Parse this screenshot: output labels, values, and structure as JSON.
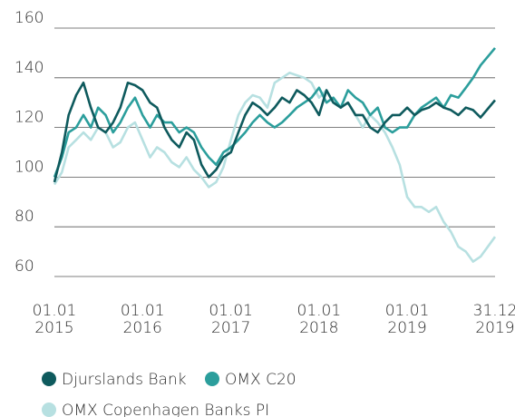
{
  "chart_data": {
    "type": "line",
    "x": [
      "2015-01-01",
      "2015-02-01",
      "2015-03-01",
      "2015-04-01",
      "2015-05-01",
      "2015-06-01",
      "2015-07-01",
      "2015-08-01",
      "2015-09-01",
      "2015-10-01",
      "2015-11-01",
      "2015-12-01",
      "2016-01-01",
      "2016-02-01",
      "2016-03-01",
      "2016-04-01",
      "2016-05-01",
      "2016-06-01",
      "2016-07-01",
      "2016-08-01",
      "2016-09-01",
      "2016-10-01",
      "2016-11-01",
      "2016-12-01",
      "2017-01-01",
      "2017-02-01",
      "2017-03-01",
      "2017-04-01",
      "2017-05-01",
      "2017-06-01",
      "2017-07-01",
      "2017-08-01",
      "2017-09-01",
      "2017-10-01",
      "2017-11-01",
      "2017-12-01",
      "2018-01-01",
      "2018-02-01",
      "2018-03-01",
      "2018-04-01",
      "2018-05-01",
      "2018-06-01",
      "2018-07-01",
      "2018-08-01",
      "2018-09-01",
      "2018-10-01",
      "2018-11-01",
      "2018-12-01",
      "2019-01-01",
      "2019-02-01",
      "2019-03-01",
      "2019-04-01",
      "2019-05-01",
      "2019-06-01",
      "2019-07-01",
      "2019-08-01",
      "2019-09-01",
      "2019-10-01",
      "2019-11-01",
      "2019-12-31"
    ],
    "series": [
      {
        "name": "OMX Copenhagen Banks PI",
        "color": "#b7e0e1",
        "values": [
          97,
          102,
          112,
          115,
          118,
          115,
          120,
          118,
          112,
          114,
          120,
          122,
          115,
          108,
          112,
          110,
          106,
          104,
          108,
          103,
          100,
          96,
          98,
          104,
          115,
          125,
          130,
          133,
          132,
          128,
          138,
          140,
          142,
          141,
          140,
          138,
          132,
          135,
          130,
          128,
          130,
          125,
          120,
          125,
          122,
          118,
          112,
          105,
          92,
          88,
          88,
          86,
          88,
          82,
          78,
          72,
          70,
          66,
          68,
          76
        ]
      },
      {
        "name": "OMX C20",
        "color": "#2b9e9c",
        "values": [
          100,
          108,
          118,
          120,
          125,
          120,
          128,
          125,
          118,
          122,
          128,
          132,
          125,
          120,
          125,
          122,
          122,
          118,
          120,
          118,
          112,
          108,
          105,
          110,
          112,
          115,
          118,
          122,
          125,
          122,
          120,
          122,
          125,
          128,
          130,
          132,
          136,
          130,
          132,
          128,
          135,
          132,
          130,
          125,
          128,
          120,
          118,
          120,
          120,
          125,
          128,
          130,
          132,
          128,
          133,
          132,
          136,
          140,
          145,
          152
        ]
      },
      {
        "name": "Djurslands Bank",
        "color": "#0e5a5d",
        "values": [
          98,
          110,
          125,
          133,
          138,
          128,
          120,
          118,
          122,
          128,
          138,
          137,
          135,
          130,
          128,
          120,
          115,
          112,
          118,
          115,
          105,
          100,
          103,
          108,
          110,
          118,
          125,
          130,
          128,
          125,
          128,
          132,
          130,
          135,
          133,
          130,
          125,
          135,
          130,
          128,
          130,
          125,
          125,
          120,
          118,
          122,
          125,
          125,
          128,
          125,
          127,
          128,
          130,
          128,
          127,
          125,
          128,
          127,
          124,
          131
        ]
      }
    ],
    "legend_order": [
      2,
      1,
      0
    ],
    "xlim": [
      "2015-01-01",
      "2019-12-31"
    ],
    "xticks": [
      {
        "value": "2015-01-01",
        "label": "01.01 2015"
      },
      {
        "value": "2016-01-01",
        "label": "01.01 2016"
      },
      {
        "value": "2017-01-01",
        "label": "01.01 2017"
      },
      {
        "value": "2018-01-01",
        "label": "01.01 2018"
      },
      {
        "value": "2019-01-01",
        "label": "01.01 2019"
      },
      {
        "value": "2019-12-31",
        "label": "31.12 2019"
      }
    ],
    "ylim": [
      60,
      160
    ],
    "yticks": [
      60,
      80,
      100,
      120,
      140,
      160
    ],
    "grid": true,
    "legend": "bottom"
  }
}
